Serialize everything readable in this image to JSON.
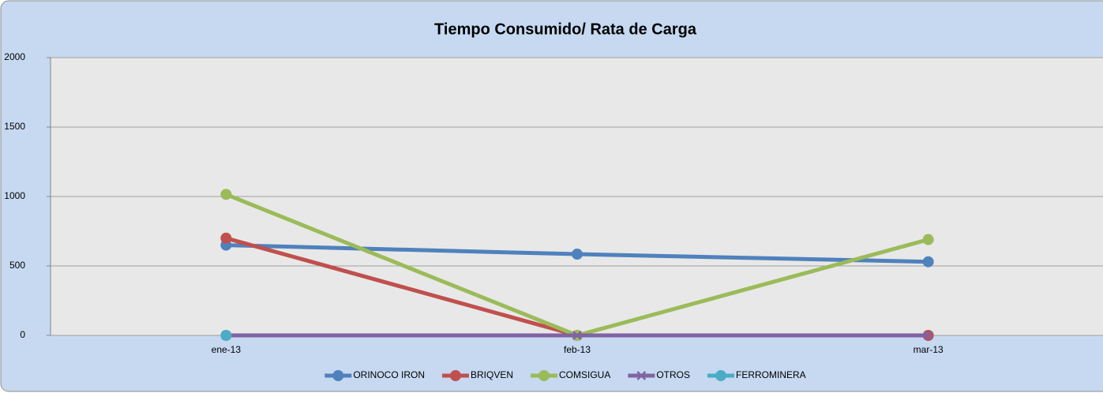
{
  "chart_data": {
    "type": "line",
    "title": "Tiempo Consumido/ Rata de Carga",
    "categories": [
      "ene-13",
      "feb-13",
      "mar-13"
    ],
    "series": [
      {
        "name": "ORINOCO IRON",
        "color": "#4f81bd",
        "marker": "circle",
        "values": [
          650,
          585,
          530
        ]
      },
      {
        "name": "BRIQVEN",
        "color": "#c0504d",
        "marker": "circle",
        "values": [
          700,
          0,
          0
        ]
      },
      {
        "name": "COMSIGUA",
        "color": "#9bbb59",
        "marker": "circle",
        "values": [
          1015,
          0,
          690
        ]
      },
      {
        "name": "OTROS",
        "color": "#8064a2",
        "marker": "x",
        "values": [
          0,
          0,
          0
        ]
      },
      {
        "name": "FERROMINERA",
        "color": "#4bacc6",
        "marker": "circle",
        "values": [
          0,
          null,
          null
        ]
      }
    ],
    "ylim": [
      0,
      2000
    ],
    "yticks": [
      0,
      500,
      1000,
      1500,
      2000
    ],
    "grid": true,
    "legend": "bottom"
  }
}
